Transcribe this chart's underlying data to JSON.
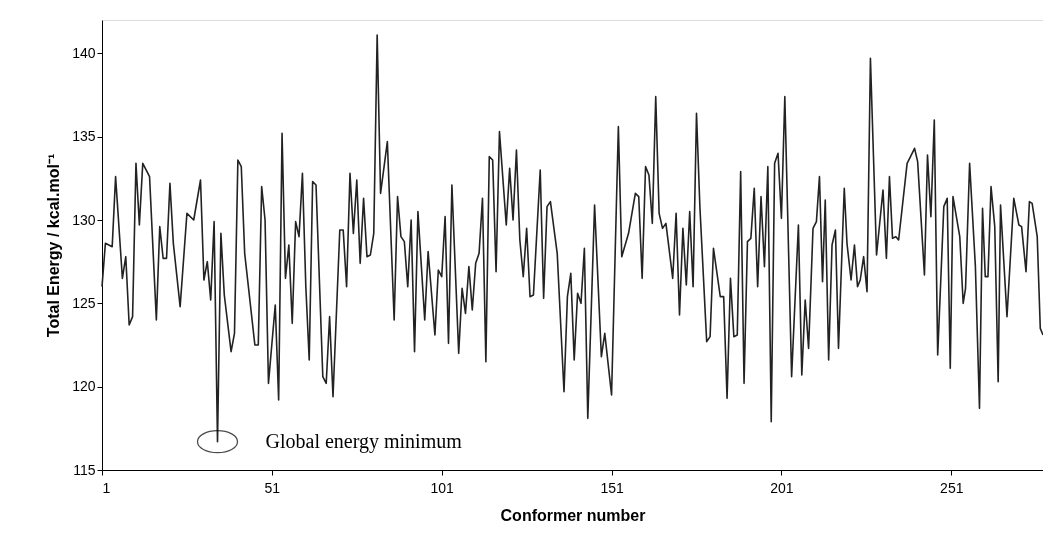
{
  "chart_data": {
    "type": "line",
    "xlabel": "Conformer number",
    "ylabel": "Total Energy / kcal.mol⁻¹",
    "color": "#222222",
    "x": [
      1,
      2,
      4,
      5,
      7,
      8,
      9,
      10,
      11,
      12,
      13,
      15,
      17,
      18,
      19,
      20,
      21,
      22,
      24,
      26,
      28,
      30,
      31,
      32,
      33,
      34,
      35,
      36,
      37,
      39,
      40,
      41,
      42,
      43,
      46,
      47,
      48,
      49,
      50,
      52,
      53,
      54,
      55,
      56,
      57,
      58,
      59,
      60,
      61,
      62,
      63,
      64,
      66,
      67,
      68,
      69,
      71,
      72,
      73,
      74,
      75,
      76,
      77,
      78,
      79,
      80,
      81,
      82,
      83,
      85,
      87,
      88,
      89,
      90,
      91,
      92,
      93,
      94,
      96,
      97,
      99,
      100,
      101,
      102,
      103,
      104,
      106,
      107,
      108,
      109,
      110,
      111,
      112,
      113,
      114,
      115,
      116,
      117,
      118,
      120,
      121,
      122,
      123,
      124,
      125,
      126,
      127,
      128,
      130,
      131,
      132,
      133,
      135,
      137,
      138,
      139,
      140,
      141,
      142,
      143,
      144,
      146,
      148,
      149,
      151,
      153,
      154,
      156,
      158,
      159,
      160,
      161,
      162,
      163,
      164,
      165,
      166,
      167,
      169,
      170,
      171,
      172,
      173,
      174,
      175,
      176,
      177,
      179,
      180,
      181,
      183,
      184,
      185,
      186,
      187,
      188,
      189,
      190,
      191,
      192,
      193,
      194,
      195,
      196,
      197,
      198,
      199,
      200,
      201,
      202,
      204,
      206,
      207,
      208,
      209.0,
      210.3,
      211.3,
      212.2,
      213.1,
      213.9,
      214.9,
      215.9,
      216.9,
      217.8,
      219.5,
      220.3,
      221.5,
      222.5,
      223.4,
      224.2,
      225.2,
      226.2,
      227.2,
      229.0,
      230.9,
      231.9,
      232.8,
      233.7,
      234.7,
      235.5,
      238.0,
      239.0,
      240.2,
      241.1,
      243.1,
      244.0,
      245.0,
      246.0,
      247.0,
      248.8,
      249.8,
      250.7,
      251.5,
      253.5,
      254.5,
      255.2,
      256.4,
      258.1,
      259.3,
      260.2,
      261.0,
      261.8,
      262.7,
      263.8,
      264.8,
      265.5,
      267.4,
      269.4,
      270.9,
      271.7,
      273.0,
      274.0,
      274.8,
      276.3,
      277.2,
      278.0
    ],
    "values": [
      126.0,
      128.6,
      128.4,
      132.6,
      126.5,
      127.8,
      123.7,
      124.2,
      133.4,
      129.7,
      133.4,
      132.6,
      124.0,
      129.6,
      127.7,
      127.7,
      132.2,
      128.6,
      124.8,
      130.4,
      130.0,
      132.4,
      126.4,
      127.5,
      125.2,
      129.9,
      116.7,
      129.2,
      125.5,
      122.1,
      123.2,
      133.6,
      133.2,
      128.0,
      122.5,
      122.5,
      132.0,
      130.0,
      120.2,
      124.9,
      119.2,
      135.2,
      126.5,
      128.5,
      123.8,
      129.9,
      129.0,
      132.8,
      126.0,
      121.6,
      132.3,
      132.1,
      120.6,
      120.2,
      124.2,
      119.4,
      129.4,
      129.4,
      126.0,
      132.8,
      129.2,
      132.4,
      127.4,
      131.3,
      127.8,
      127.9,
      129.2,
      141.1,
      131.6,
      134.7,
      124.0,
      131.4,
      129.0,
      128.7,
      126.0,
      130.0,
      122.1,
      130.5,
      124.0,
      128.1,
      123.1,
      127.0,
      126.6,
      130.2,
      122.6,
      132.1,
      122.0,
      125.9,
      124.4,
      127.2,
      124.6,
      127.4,
      128.0,
      131.3,
      121.5,
      133.8,
      133.6,
      126.9,
      135.3,
      129.7,
      133.1,
      130.0,
      134.2,
      128.8,
      126.6,
      129.5,
      125.4,
      125.5,
      133.0,
      125.3,
      130.8,
      131.1,
      128.0,
      119.7,
      125.4,
      126.8,
      121.6,
      125.6,
      125.0,
      128.3,
      118.1,
      130.9,
      121.8,
      123.2,
      119.5,
      135.6,
      127.8,
      129.2,
      131.6,
      131.4,
      126.5,
      133.2,
      132.7,
      129.8,
      137.4,
      130.4,
      129.5,
      129.8,
      126.5,
      130.4,
      124.3,
      129.5,
      126.1,
      130.5,
      126.0,
      136.4,
      130.8,
      122.7,
      123.0,
      128.3,
      125.4,
      125.4,
      119.3,
      126.5,
      123.0,
      123.1,
      132.9,
      120.2,
      128.7,
      128.9,
      131.9,
      126.0,
      131.4,
      127.2,
      133.2,
      117.9,
      133.4,
      134.0,
      130.1,
      137.4,
      120.6,
      129.7,
      120.7,
      125.2,
      122.3,
      129.5,
      129.9,
      132.6,
      126.3,
      131.2,
      121.6,
      128.5,
      129.4,
      122.3,
      131.9,
      128.6,
      126.4,
      128.5,
      126.0,
      126.4,
      127.8,
      125.7,
      139.7,
      127.9,
      131.8,
      127.7,
      132.6,
      128.9,
      129.0,
      128.8,
      133.4,
      133.8,
      134.3,
      133.5,
      126.7,
      133.9,
      130.2,
      136.0,
      121.9,
      130.8,
      131.3,
      121.1,
      131.4,
      129.0,
      125.0,
      125.9,
      133.4,
      127.2,
      118.7,
      130.7,
      126.6,
      126.6,
      132.0,
      129.6,
      120.3,
      130.9,
      124.2,
      131.3,
      129.7,
      129.6,
      126.9,
      131.1,
      131.0,
      129.0,
      123.5,
      123.1
    ],
    "xlim": [
      1,
      278
    ],
    "xticks": [
      1,
      51,
      101,
      151,
      201,
      251
    ],
    "ylim": [
      115,
      142
    ],
    "yticks": [
      115,
      120,
      125,
      130,
      135,
      140
    ],
    "annotations": [
      {
        "text": "Global energy minimum",
        "x": 35,
        "y": 116.7
      }
    ]
  }
}
